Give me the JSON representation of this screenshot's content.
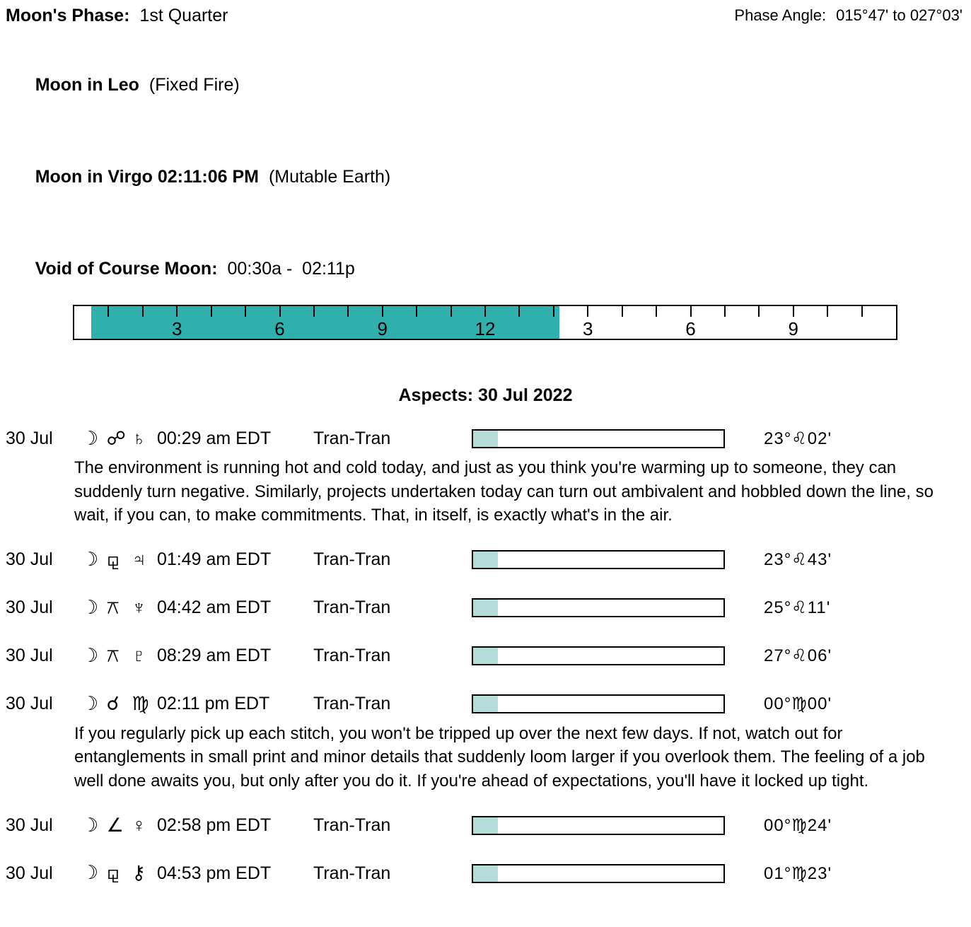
{
  "colors": {
    "voc_fill": "#2fb0ac",
    "aspect_bar_fill": "#b5dcd8",
    "text": "#000000",
    "background": "#ffffff"
  },
  "header": {
    "moons_phase_label": "Moon's Phase:",
    "moons_phase_value": "1st Quarter",
    "phase_angle_label": "Phase Angle:",
    "phase_angle_value": "015°47' to 027°03'",
    "moon_sign_label": "Moon in Leo",
    "moon_sign_value": "(Fixed Fire)",
    "moon_next_sign_label": "Moon in Virgo 02:11:06 PM",
    "moon_next_sign_value": "(Mutable Earth)",
    "voc_label": "Void of Course Moon:",
    "voc_value": "00:30a -  02:11p"
  },
  "voc_bar": {
    "total_hours": 24,
    "fill_start": "00:30a",
    "fill_end": "02:11p",
    "fill_left": "2.08%",
    "fill_width": "57%",
    "ticks": [
      {
        "hour": 1,
        "label": ""
      },
      {
        "hour": 2,
        "label": ""
      },
      {
        "hour": 3,
        "label": "3"
      },
      {
        "hour": 4,
        "label": ""
      },
      {
        "hour": 5,
        "label": ""
      },
      {
        "hour": 6,
        "label": "6"
      },
      {
        "hour": 7,
        "label": ""
      },
      {
        "hour": 8,
        "label": ""
      },
      {
        "hour": 9,
        "label": "9"
      },
      {
        "hour": 10,
        "label": ""
      },
      {
        "hour": 11,
        "label": ""
      },
      {
        "hour": 12,
        "label": "12"
      },
      {
        "hour": 13,
        "label": ""
      },
      {
        "hour": 14,
        "label": ""
      },
      {
        "hour": 15,
        "label": "3"
      },
      {
        "hour": 16,
        "label": ""
      },
      {
        "hour": 17,
        "label": ""
      },
      {
        "hour": 18,
        "label": "6"
      },
      {
        "hour": 19,
        "label": ""
      },
      {
        "hour": 20,
        "label": ""
      },
      {
        "hour": 21,
        "label": "9"
      },
      {
        "hour": 22,
        "label": ""
      },
      {
        "hour": 23,
        "label": ""
      }
    ]
  },
  "aspects": {
    "title": "Aspects: 30 Jul 2022",
    "rows": [
      {
        "date": "30 Jul",
        "moon_glyph": "☽",
        "aspect_glyph": "☍",
        "planet_glyph": "♄",
        "aspect_name": "opposition",
        "planet_name": "saturn",
        "time": "00:29 am EDT",
        "type": "Tran-Tran",
        "progress_width": "10%",
        "degree": "23°♌02'",
        "description": "The environment is running hot and cold today, and just as you think you're warming up to someone, they can suddenly turn negative. Similarly, projects undertaken today can turn out ambivalent and hobbled down the line, so wait, if you can, to make commitments. That, in itself, is exactly what's in the air."
      },
      {
        "date": "30 Jul",
        "moon_glyph": "☽",
        "aspect_glyph": "⚼",
        "planet_glyph": "♃",
        "aspect_name": "sesquiquadrate",
        "planet_name": "jupiter",
        "time": "01:49 am EDT",
        "type": "Tran-Tran",
        "progress_width": "10%",
        "degree": "23°♌43'"
      },
      {
        "date": "30 Jul",
        "moon_glyph": "☽",
        "aspect_glyph": "⚻",
        "planet_glyph": "♆",
        "aspect_name": "quincunx",
        "planet_name": "neptune",
        "time": "04:42 am EDT",
        "type": "Tran-Tran",
        "progress_width": "10%",
        "degree": "25°♌11'"
      },
      {
        "date": "30 Jul",
        "moon_glyph": "☽",
        "aspect_glyph": "⚻",
        "planet_glyph": "♇",
        "aspect_name": "quincunx",
        "planet_name": "pluto",
        "time": "08:29 am EDT",
        "type": "Tran-Tran",
        "progress_width": "10%",
        "degree": "27°♌06'"
      },
      {
        "date": "30 Jul",
        "moon_glyph": "☽",
        "aspect_glyph": "☌",
        "planet_glyph": "♍",
        "aspect_name": "conjunction",
        "planet_name": "virgo",
        "time": "02:11 pm EDT",
        "type": "Tran-Tran",
        "progress_width": "10%",
        "degree": "00°♍00'",
        "description": "If you regularly pick up each stitch, you won't be tripped up over the next few days. If not, watch out for entanglements in small print and minor details that suddenly loom larger if you overlook them. The feeling of a job well done awaits you, but only after you do it. If you're ahead of expectations, you'll have it locked up tight."
      },
      {
        "date": "30 Jul",
        "moon_glyph": "☽",
        "aspect_glyph": "∠",
        "planet_glyph": "♀",
        "aspect_name": "semisquare",
        "planet_name": "venus",
        "time": "02:58 pm EDT",
        "type": "Tran-Tran",
        "progress_width": "10%",
        "degree": "00°♍24'"
      },
      {
        "date": "30 Jul",
        "moon_glyph": "☽",
        "aspect_glyph": "⚼",
        "planet_glyph": "⚷",
        "aspect_name": "sesquiquadrate",
        "planet_name": "chiron",
        "time": "04:53 pm EDT",
        "type": "Tran-Tran",
        "progress_width": "10%",
        "degree": "01°♍23'"
      }
    ]
  }
}
